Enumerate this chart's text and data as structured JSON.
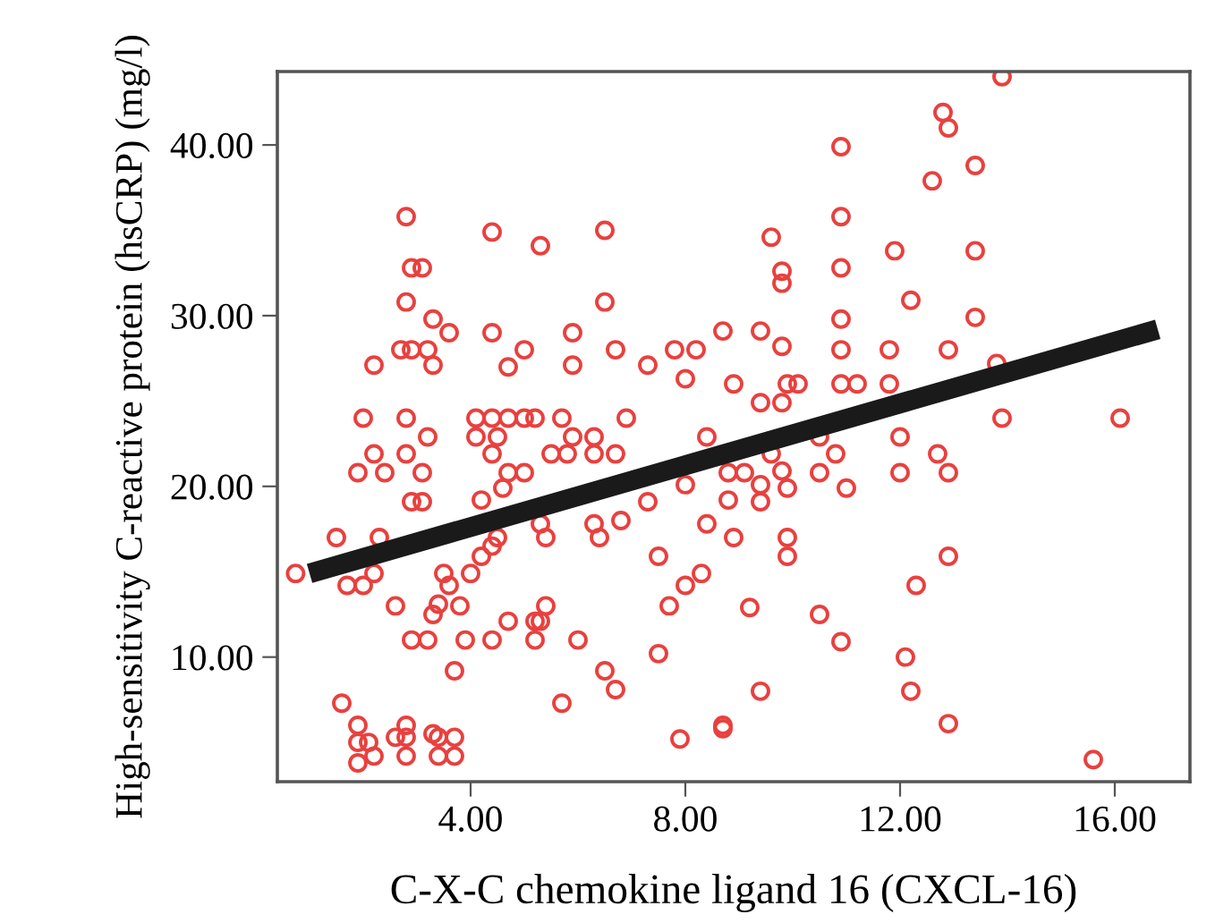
{
  "chart_data": {
    "type": "scatter",
    "xlabel": "C-X-C chemokine ligand 16 (CXCL-16)",
    "ylabel": "High-sensitivity C-reactive protein (hsCRP) (mg/l)",
    "xlim": [
      0.4,
      17.4
    ],
    "ylim": [
      2.7,
      44.3
    ],
    "xticks": [
      {
        "value": 4,
        "label": "4.00"
      },
      {
        "value": 8,
        "label": "8.00"
      },
      {
        "value": 12,
        "label": "12.00"
      },
      {
        "value": 16,
        "label": "16.00"
      }
    ],
    "yticks": [
      {
        "value": 10,
        "label": "10.00"
      },
      {
        "value": 20,
        "label": "20.00"
      },
      {
        "value": 30,
        "label": "30.00"
      },
      {
        "value": 40,
        "label": "40.00"
      }
    ],
    "grid": false,
    "legend": false,
    "series": [
      {
        "marker": "circle",
        "color": "#e8413f",
        "x": [
          13.9,
          12.8,
          12.9,
          10.9,
          13.4,
          12.6,
          2.8,
          4.4,
          6.5,
          5.3,
          9.6,
          10.9,
          11.9,
          13.4,
          9.8,
          9.8,
          10.9,
          12.2,
          13.4,
          10.9,
          2.9,
          3.1,
          2.8,
          6.5,
          3.3,
          3.6,
          4.4,
          5.9,
          8.7,
          9.4,
          2.7,
          2.9,
          3.2,
          2.2,
          3.3,
          4.7,
          5.0,
          5.9,
          6.7,
          7.3,
          7.8,
          8.2,
          8.0,
          9.8,
          10.9,
          11.8,
          12.9,
          13.8,
          8.9,
          9.9,
          10.1,
          10.9,
          11.2,
          11.8,
          9.4,
          9.8,
          2.0,
          2.8,
          3.2,
          4.1,
          4.4,
          4.7,
          5.0,
          5.2,
          5.7,
          6.9,
          4.1,
          4.5,
          5.9,
          6.3,
          2.2,
          2.8,
          4.4,
          5.5,
          5.8,
          6.3,
          6.7,
          8.4,
          1.9,
          2.4,
          3.1,
          4.7,
          5.0,
          4.6,
          2.9,
          3.1,
          4.2,
          5.3,
          6.3,
          6.8,
          7.3,
          8.0,
          8.4,
          6.4,
          5.4,
          4.5,
          1.5,
          2.3,
          0.74,
          1.7,
          2.0,
          2.2,
          3.5,
          3.6,
          4.0,
          4.2,
          4.4,
          7.5,
          8.3,
          8.0,
          2.6,
          3.4,
          3.3,
          3.8,
          5.4,
          5.3,
          5.2,
          4.7,
          7.7,
          2.9,
          3.2,
          3.9,
          4.4,
          5.2,
          6.0,
          3.7,
          6.5,
          6.7,
          7.5,
          5.7,
          1.6,
          1.9,
          1.9,
          2.1,
          2.2,
          1.9,
          2.8,
          2.6,
          2.8,
          2.8,
          3.3,
          3.4,
          3.7,
          3.4,
          3.7,
          7.9,
          8.7,
          13.9,
          16.1,
          12.0,
          10.5,
          12.7,
          12.9,
          12.0,
          10.8,
          10.5,
          11.0,
          9.6,
          8.8,
          9.1,
          9.8,
          9.9,
          9.4,
          9.4,
          8.8,
          8.9,
          9.9,
          9.9,
          12.9,
          12.3,
          9.2,
          10.5,
          10.9,
          12.1,
          12.2,
          9.4,
          12.9,
          8.7,
          15.6
        ],
        "values": [
          44.0,
          41.9,
          41.0,
          39.9,
          38.8,
          37.9,
          35.8,
          34.9,
          35.0,
          34.1,
          34.6,
          35.8,
          33.8,
          33.8,
          32.6,
          31.9,
          32.8,
          30.9,
          29.9,
          29.8,
          32.8,
          32.8,
          30.8,
          30.8,
          29.8,
          29.0,
          29.0,
          29.0,
          29.1,
          29.1,
          28.0,
          28.0,
          28.0,
          27.1,
          27.1,
          27.0,
          28.0,
          27.1,
          28.0,
          27.1,
          28.0,
          28.0,
          26.3,
          28.2,
          28.0,
          28.0,
          28.0,
          27.2,
          26.0,
          26.0,
          26.0,
          26.0,
          26.0,
          26.0,
          24.9,
          24.9,
          24.0,
          24.0,
          22.9,
          24.0,
          24.0,
          24.0,
          24.0,
          24.0,
          24.0,
          24.0,
          22.9,
          22.9,
          22.9,
          22.9,
          21.9,
          21.9,
          21.9,
          21.9,
          21.9,
          21.9,
          21.9,
          22.9,
          20.8,
          20.8,
          20.8,
          20.8,
          20.8,
          19.9,
          19.1,
          19.1,
          19.2,
          17.8,
          17.8,
          18.0,
          19.1,
          20.1,
          17.8,
          17.0,
          17.0,
          17.0,
          17.0,
          17.0,
          14.9,
          14.2,
          14.2,
          14.9,
          14.9,
          14.2,
          14.9,
          15.9,
          16.5,
          15.9,
          14.9,
          14.2,
          13.0,
          13.1,
          12.5,
          13.0,
          13.0,
          12.1,
          12.1,
          12.1,
          13.0,
          11.0,
          11.0,
          11.0,
          11.0,
          11.0,
          11.0,
          9.2,
          9.2,
          8.1,
          10.2,
          7.3,
          7.3,
          6.0,
          5.0,
          5.0,
          4.2,
          3.8,
          6.0,
          5.3,
          5.3,
          4.2,
          5.5,
          5.3,
          5.3,
          4.2,
          4.2,
          5.2,
          6.0,
          24.0,
          24.0,
          22.9,
          22.9,
          21.9,
          20.8,
          20.8,
          21.9,
          20.8,
          19.9,
          21.9,
          20.8,
          20.8,
          20.9,
          19.9,
          20.1,
          19.1,
          19.2,
          17.0,
          17.0,
          15.9,
          15.9,
          14.2,
          12.9,
          12.5,
          10.9,
          10.0,
          8.0,
          8.0,
          6.1,
          5.8,
          4.0
        ]
      },
      {
        "type": "line",
        "color": "#1a1a1a",
        "x": [
          1.0,
          16.8
        ],
        "values": [
          14.9,
          29.2
        ]
      }
    ]
  }
}
